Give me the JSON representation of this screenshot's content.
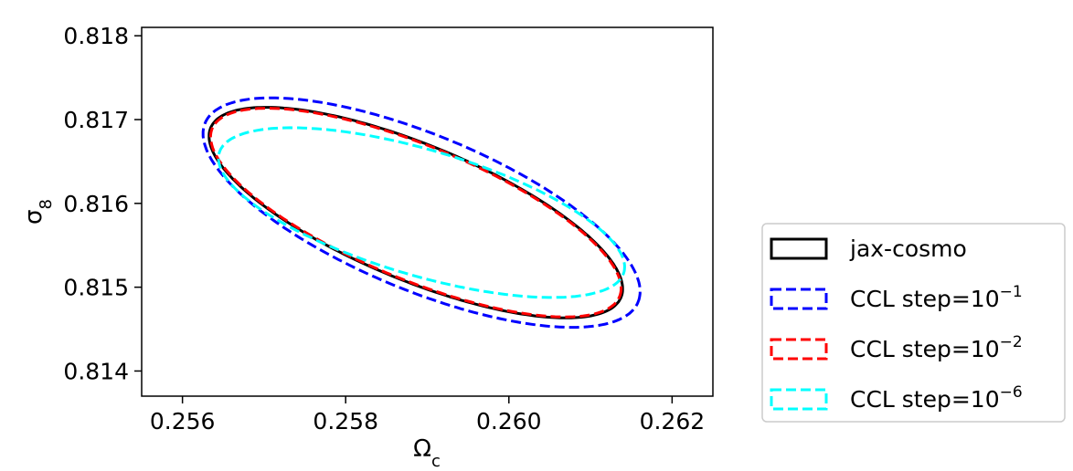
{
  "chart_data": {
    "type": "line",
    "title": "",
    "xlabel": "Ω_c",
    "ylabel": "σ_8",
    "xlim": [
      0.2555,
      0.2625
    ],
    "ylim": [
      0.8137,
      0.8181
    ],
    "grid": false,
    "legend_position": "outside-right",
    "x_ticks": [
      "0.256",
      "0.258",
      "0.260",
      "0.262"
    ],
    "y_ticks": [
      "0.814",
      "0.815",
      "0.816",
      "0.817",
      "0.818"
    ],
    "series": [
      {
        "name": "jax-cosmo",
        "color": "#000000",
        "style": "solid",
        "legend_main": "jax-cosmo",
        "legend_sup": "",
        "ellipse": {
          "center": [
            0.25886,
            0.81589
          ],
          "a": 0.00271,
          "b": 0.00081,
          "angle_deg": -21.8
        }
      },
      {
        "name": "CCL step=10^-1",
        "color": "#0000ff",
        "style": "dashed",
        "legend_main": "CCL step=10",
        "legend_sup": "−1",
        "ellipse": {
          "center": [
            0.25893,
            0.81589
          ],
          "a": 0.00286,
          "b": 0.00093,
          "angle_deg": -21.8
        }
      },
      {
        "name": "CCL step=10^-2",
        "color": "#ff0000",
        "style": "dashed",
        "legend_main": "CCL step=10",
        "legend_sup": "−2",
        "ellipse": {
          "center": [
            0.25886,
            0.81589
          ],
          "a": 0.00269,
          "b": 0.0008,
          "angle_deg": -21.8
        }
      },
      {
        "name": "CCL step=10^-6",
        "color": "#00ffff",
        "style": "dashed",
        "legend_main": "CCL step=10",
        "legend_sup": "−6",
        "ellipse": {
          "center": [
            0.25893,
            0.81589
          ],
          "a": 0.00258,
          "b": 0.00075,
          "angle_deg": -16.0
        }
      }
    ]
  }
}
